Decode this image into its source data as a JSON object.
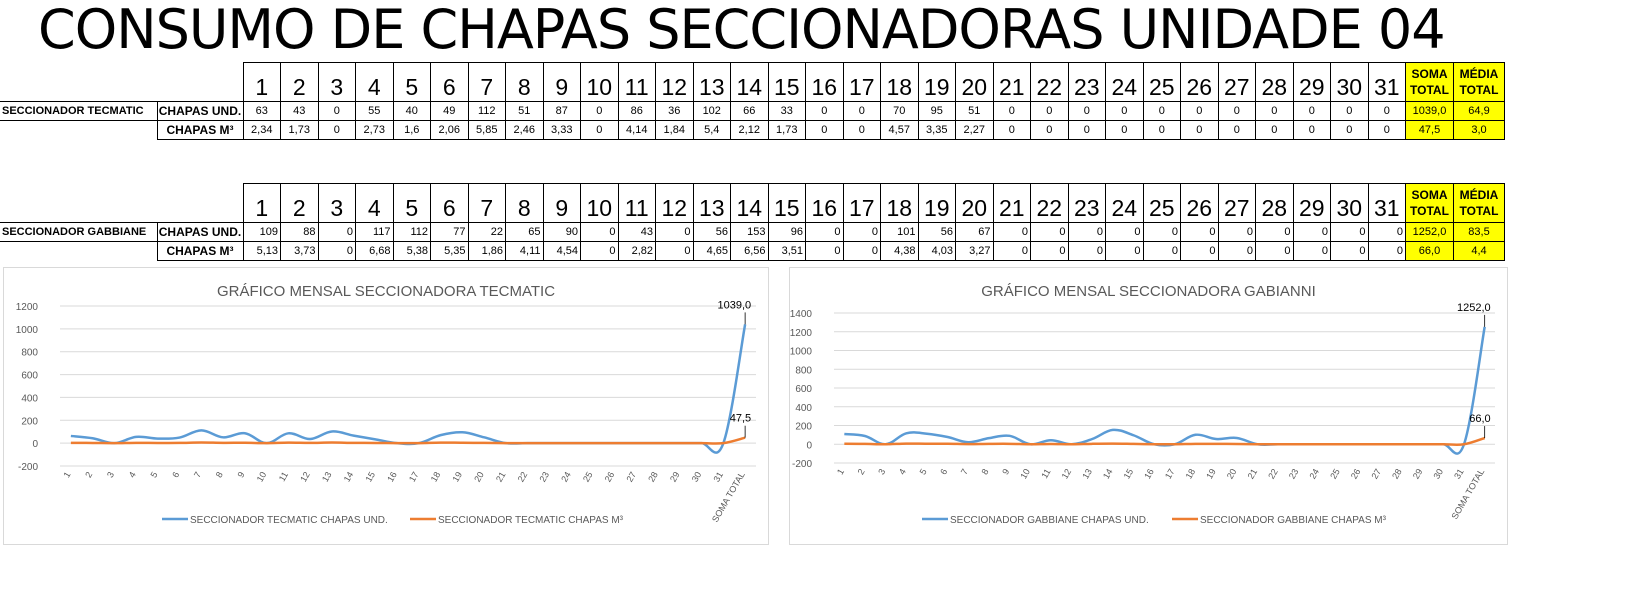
{
  "title": "CONSUMO DE CHAPAS SECCIONADORAS UNIDADE 04",
  "tables": [
    {
      "row_label": "SECCIONADOR TECMATIC",
      "days": [
        "1",
        "2",
        "3",
        "4",
        "5",
        "6",
        "7",
        "8",
        "9",
        "10",
        "11",
        "12",
        "13",
        "14",
        "15",
        "16",
        "17",
        "18",
        "19",
        "20",
        "21",
        "22",
        "23",
        "24",
        "25",
        "26",
        "27",
        "28",
        "29",
        "30",
        "31"
      ],
      "sum_header": [
        "SOMA",
        "TOTAL"
      ],
      "avg_header": [
        "MÉDIA",
        "TOTAL"
      ],
      "rows": [
        {
          "metric": "CHAPAS UND.",
          "values": [
            "63",
            "43",
            "0",
            "55",
            "40",
            "49",
            "112",
            "51",
            "87",
            "0",
            "86",
            "36",
            "102",
            "66",
            "33",
            "0",
            "0",
            "70",
            "95",
            "51",
            "0",
            "0",
            "0",
            "0",
            "0",
            "0",
            "0",
            "0",
            "0",
            "0",
            "0"
          ],
          "sum": "1039,0",
          "avg": "64,9"
        },
        {
          "metric": "CHAPAS M³",
          "values": [
            "2,34",
            "1,73",
            "0",
            "2,73",
            "1,6",
            "2,06",
            "5,85",
            "2,46",
            "3,33",
            "0",
            "4,14",
            "1,84",
            "5,4",
            "2,12",
            "1,73",
            "0",
            "0",
            "4,57",
            "3,35",
            "2,27",
            "0",
            "0",
            "0",
            "0",
            "0",
            "0",
            "0",
            "0",
            "0",
            "0",
            "0"
          ],
          "sum": "47,5",
          "avg": "3,0"
        }
      ]
    },
    {
      "row_label": "SECCIONADOR GABBIANE",
      "days": [
        "1",
        "2",
        "3",
        "4",
        "5",
        "6",
        "7",
        "8",
        "9",
        "10",
        "11",
        "12",
        "13",
        "14",
        "15",
        "16",
        "17",
        "18",
        "19",
        "20",
        "21",
        "22",
        "23",
        "24",
        "25",
        "26",
        "27",
        "28",
        "29",
        "30",
        "31"
      ],
      "sum_header": [
        "SOMA",
        "TOTAL"
      ],
      "avg_header": [
        "MÉDIA",
        "TOTAL"
      ],
      "rows": [
        {
          "metric": "CHAPAS UND.",
          "values": [
            "109",
            "88",
            "0",
            "117",
            "112",
            "77",
            "22",
            "65",
            "90",
            "0",
            "43",
            "0",
            "56",
            "153",
            "96",
            "0",
            "0",
            "101",
            "56",
            "67",
            "0",
            "0",
            "0",
            "0",
            "0",
            "0",
            "0",
            "0",
            "0",
            "0",
            "0"
          ],
          "sum": "1252,0",
          "avg": "83,5"
        },
        {
          "metric": "CHAPAS M³",
          "values": [
            "5,13",
            "3,73",
            "0",
            "6,68",
            "5,38",
            "5,35",
            "1,86",
            "4,11",
            "4,54",
            "0",
            "2,82",
            "0",
            "4,65",
            "6,56",
            "3,51",
            "0",
            "0",
            "4,38",
            "4,03",
            "3,27",
            "0",
            "0",
            "0",
            "0",
            "0",
            "0",
            "0",
            "0",
            "0",
            "0",
            "0"
          ],
          "sum": "66,0",
          "avg": "4,4"
        }
      ]
    }
  ],
  "chart_data": [
    {
      "type": "line",
      "title": "GRÁFICO MENSAL SECCIONADORA TECMATIC",
      "categories": [
        "1",
        "2",
        "3",
        "4",
        "5",
        "6",
        "7",
        "8",
        "9",
        "10",
        "11",
        "12",
        "13",
        "14",
        "15",
        "16",
        "17",
        "18",
        "19",
        "20",
        "21",
        "22",
        "23",
        "24",
        "25",
        "26",
        "27",
        "28",
        "29",
        "30",
        "31",
        "SOMA TOTAL"
      ],
      "yticks": [
        "-200",
        "0",
        "200",
        "400",
        "600",
        "800",
        "1000",
        "1200"
      ],
      "ylim": [
        -200,
        1200
      ],
      "grid": true,
      "legend": "bottom",
      "series": [
        {
          "name": "SECCIONADOR TECMATIC CHAPAS UND.",
          "color": "#5b9bd5",
          "values": [
            63,
            43,
            0,
            55,
            40,
            49,
            112,
            51,
            87,
            0,
            86,
            36,
            102,
            66,
            33,
            0,
            0,
            70,
            95,
            51,
            0,
            0,
            0,
            0,
            0,
            0,
            0,
            0,
            0,
            0,
            0,
            1039
          ],
          "end_label": "1039,0"
        },
        {
          "name": "SECCIONADOR TECMATIC CHAPAS M³",
          "color": "#ed7d31",
          "values": [
            2.34,
            1.73,
            0,
            2.73,
            1.6,
            2.06,
            5.85,
            2.46,
            3.33,
            0,
            4.14,
            1.84,
            5.4,
            2.12,
            1.73,
            0,
            0,
            4.57,
            3.35,
            2.27,
            0,
            0,
            0,
            0,
            0,
            0,
            0,
            0,
            0,
            0,
            0,
            47.5
          ],
          "end_label": "47,5"
        }
      ]
    },
    {
      "type": "line",
      "title": "GRÁFICO MENSAL SECCIONADORA GABIANNI",
      "categories": [
        "1",
        "2",
        "3",
        "4",
        "5",
        "6",
        "7",
        "8",
        "9",
        "10",
        "11",
        "12",
        "13",
        "14",
        "15",
        "16",
        "17",
        "18",
        "19",
        "20",
        "21",
        "22",
        "23",
        "24",
        "25",
        "26",
        "27",
        "28",
        "29",
        "30",
        "31",
        "SOMA TOTAL"
      ],
      "yticks": [
        "-200",
        "0",
        "200",
        "400",
        "600",
        "800",
        "1000",
        "1200",
        "1400"
      ],
      "ylim": [
        -200,
        1400
      ],
      "grid": true,
      "legend": "bottom",
      "series": [
        {
          "name": "SECCIONADOR GABBIANE CHAPAS UND.",
          "color": "#5b9bd5",
          "values": [
            109,
            88,
            0,
            117,
            112,
            77,
            22,
            65,
            90,
            0,
            43,
            0,
            56,
            153,
            96,
            0,
            0,
            101,
            56,
            67,
            0,
            0,
            0,
            0,
            0,
            0,
            0,
            0,
            0,
            0,
            0,
            1252
          ],
          "end_label": "1252,0"
        },
        {
          "name": "SECCIONADOR GABBIANE CHAPAS M³",
          "color": "#ed7d31",
          "values": [
            5.13,
            3.73,
            0,
            6.68,
            5.38,
            5.35,
            1.86,
            4.11,
            4.54,
            0,
            2.82,
            0,
            4.65,
            6.56,
            3.51,
            0,
            0,
            4.38,
            4.03,
            3.27,
            0,
            0,
            0,
            0,
            0,
            0,
            0,
            0,
            0,
            0,
            0,
            66.0
          ],
          "end_label": "66,0"
        }
      ]
    }
  ]
}
